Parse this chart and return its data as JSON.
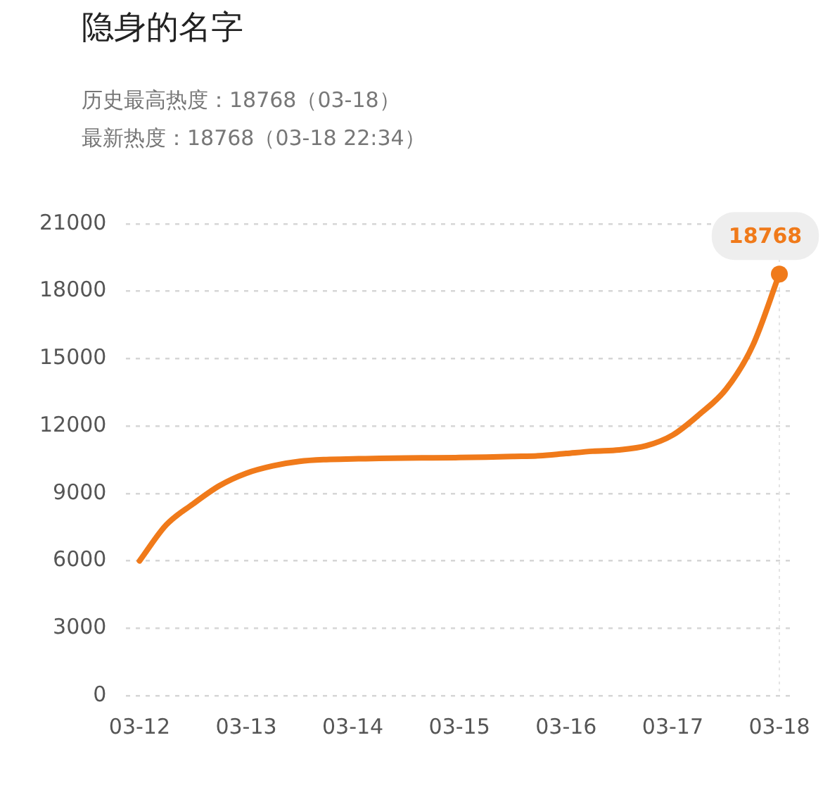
{
  "chart_data": {
    "type": "line",
    "title": "隐身的名字",
    "subtitle": "历史最高热度：18768（03-18）",
    "annotations": [
      "最新热度：18768（03-18 22:34）"
    ],
    "categories": [
      "03-12",
      null,
      null,
      null,
      "03-13",
      null,
      null,
      null,
      "03-14",
      null,
      null,
      null,
      "03-15",
      null,
      null,
      null,
      "03-16",
      null,
      null,
      null,
      "03-17",
      null,
      null,
      null,
      "03-18"
    ],
    "series": [
      {
        "color": "#f07a1a",
        "values": [
          6000,
          7600,
          8530,
          9350,
          9900,
          10230,
          10430,
          10510,
          10540,
          10560,
          10580,
          10590,
          10600,
          10620,
          10650,
          10680,
          10780,
          10880,
          10940,
          11120,
          11600,
          12520,
          13640,
          15580,
          18768
        ],
        "value_labels": [
          null,
          null,
          null,
          null,
          null,
          null,
          null,
          null,
          null,
          null,
          null,
          null,
          null,
          null,
          null,
          null,
          null,
          null,
          null,
          null,
          null,
          null,
          null,
          null,
          "18768"
        ]
      }
    ],
    "ylim": [
      0,
      21000
    ],
    "yticks": [
      0,
      3000,
      6000,
      9000,
      12000,
      15000,
      18000,
      21000
    ],
    "grid": "y",
    "line_style": "solid",
    "ref_lines": [
      {
        "axis": "x",
        "value": "03-18",
        "color": "#e4e4e4",
        "line_style": "dotted"
      }
    ]
  }
}
